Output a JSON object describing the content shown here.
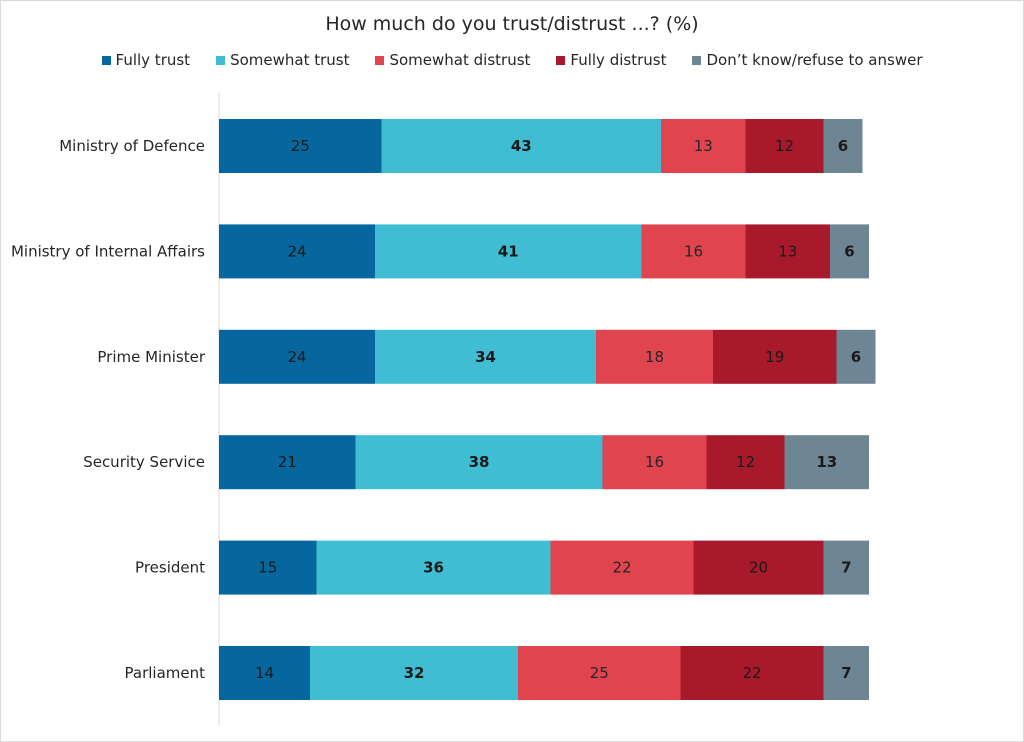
{
  "chart_data": {
    "type": "bar",
    "orientation": "horizontal",
    "stacked": true,
    "title": "How much do you trust/distrust ...? (%)",
    "xlabel": "",
    "ylabel": "",
    "xlim": [
      0,
      100
    ],
    "grid": false,
    "legend_position": "top",
    "categories": [
      "Ministry of Defence",
      "Ministry of Internal Affairs",
      "Prime Minister",
      "Security Service",
      "President",
      "Parliament"
    ],
    "series": [
      {
        "name": "Fully trust",
        "color": "#05679e",
        "label_color": "#1a1a1a",
        "label_weight": "normal",
        "values": [
          25,
          24,
          24,
          21,
          15,
          14
        ]
      },
      {
        "name": "Somewhat trust",
        "color": "#40bcd3",
        "label_color": "#1a1a1a",
        "label_weight": "bold",
        "values": [
          43,
          41,
          34,
          38,
          36,
          32
        ]
      },
      {
        "name": "Somewhat distrust",
        "color": "#e0454f",
        "label_color": "#262626",
        "label_weight": "normal",
        "values": [
          13,
          16,
          18,
          16,
          22,
          25
        ]
      },
      {
        "name": "Fully distrust",
        "color": "#a81a2b",
        "label_color": "#1a1a1a",
        "label_weight": "normal",
        "values": [
          12,
          13,
          19,
          12,
          20,
          22
        ]
      },
      {
        "name": "Don’t know/refuse to answer",
        "color": "#6e8694",
        "label_color": "#1a1a1a",
        "label_weight": "bold",
        "values": [
          6,
          6,
          6,
          13,
          7,
          7
        ]
      }
    ]
  }
}
